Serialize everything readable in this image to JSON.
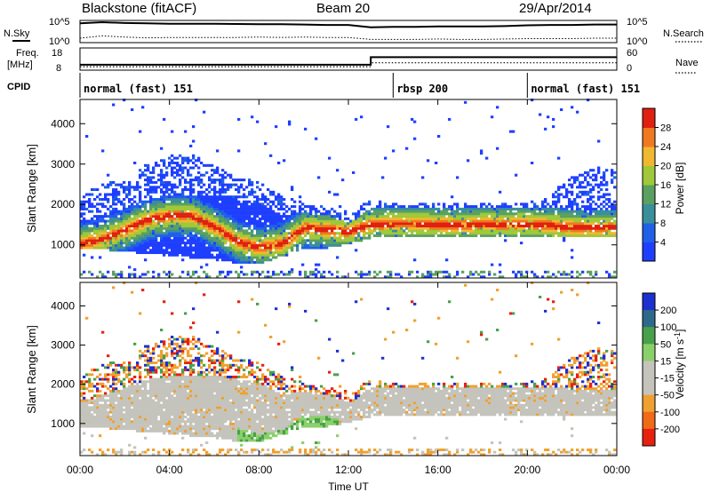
{
  "header": {
    "station": "Blackstone (fitACF)",
    "beam": "Beam 20",
    "date": "29/Apr/2014"
  },
  "chart_data": [
    {
      "type": "line",
      "panel": "noise",
      "left_label": "N.Sky",
      "right_label": "N.Search",
      "ticks_left": [
        "10^5",
        "10^0"
      ],
      "ticks_right": [
        "10^5",
        "10^0"
      ],
      "x_range_hours": [
        0,
        24
      ],
      "series": [
        {
          "name": "N.Sky",
          "style": "solid",
          "values_log10": [
            4.7,
            5.0,
            4.8,
            4.7,
            4.6,
            4.6,
            4.6,
            4.55,
            4.5,
            4.5,
            4.4,
            4.3,
            4.3,
            3.7,
            3.8,
            3.8,
            3.9,
            3.9,
            3.9,
            4.0,
            4.2,
            4.3,
            4.3,
            4.4,
            4.4
          ]
        },
        {
          "name": "N.Search",
          "style": "dotted",
          "values_log10": [
            0.9,
            1.5,
            1.2,
            1.0,
            1.1,
            1.1,
            1.1,
            1.1,
            1.2,
            1.1,
            1.2,
            1.1,
            1.1,
            0.6,
            0.6,
            0.6,
            0.7,
            0.6,
            0.6,
            0.7,
            0.8,
            0.8,
            0.8,
            0.9,
            0.9
          ]
        }
      ]
    },
    {
      "type": "line",
      "panel": "frequency",
      "left_label_1": "Freq.",
      "left_label_2": "[MHz]",
      "right_label": "Nave",
      "ticks_left": [
        "18",
        "8"
      ],
      "ticks_right": [
        "60",
        "0"
      ],
      "series": [
        {
          "name": "Freq.",
          "style": "solid",
          "x_hours": [
            0,
            13,
            13,
            24
          ],
          "y": [
            10.3,
            10.3,
            14.2,
            14.2
          ]
        },
        {
          "name": "Nave",
          "style": "dotted",
          "x_hours": [
            0,
            13,
            13,
            24
          ],
          "y": [
            8,
            8,
            20,
            20
          ]
        }
      ]
    },
    {
      "type": "table",
      "panel": "cpid",
      "label": "CPID",
      "segments": [
        {
          "start_hour": 0,
          "end_hour": 14,
          "label": "normal (fast) 151"
        },
        {
          "start_hour": 14,
          "end_hour": 20,
          "label": "rbsp 200"
        },
        {
          "start_hour": 20,
          "end_hour": 24,
          "label": "normal (fast) 151"
        }
      ]
    },
    {
      "type": "heatmap",
      "panel": "power",
      "ylabel": "Slant Range [km]",
      "ylim": [
        180,
        4600
      ],
      "yticks": [
        "1000",
        "2000",
        "3000",
        "4000"
      ],
      "colorbar_label": "Power [dB]",
      "colorbar_ticks": [
        "4",
        "8",
        "12",
        "16",
        "20",
        "24",
        "28"
      ],
      "colorbar_colors": [
        "#1f3fff",
        "#2060e8",
        "#3a8f9a",
        "#5aa060",
        "#9fc83a",
        "#f0b830",
        "#f07820",
        "#e02010"
      ],
      "band_center_km": [
        1000,
        1120,
        1350,
        1600,
        1700,
        1680,
        1400,
        1050,
        900,
        1000,
        1400,
        1350,
        1300,
        1480,
        1500,
        1500,
        1480,
        1450,
        1500,
        1480,
        1500,
        1450,
        1400,
        1380,
        1400
      ],
      "band_upper_km": [
        1500,
        1700,
        1900,
        2100,
        2200,
        2200,
        2200,
        2100,
        2000,
        1700,
        1800,
        1700,
        1500,
        1900,
        1900,
        1900,
        1900,
        1900,
        1900,
        1900,
        1900,
        1900,
        1850,
        1850,
        1850
      ],
      "band_lower_km": [
        850,
        850,
        800,
        750,
        700,
        650,
        600,
        520,
        500,
        700,
        900,
        900,
        1000,
        1150,
        1150,
        1150,
        1150,
        1150,
        1150,
        1150,
        1150,
        1150,
        1150,
        1150,
        1150
      ],
      "scatter_upper_km": [
        2300,
        2500,
        2600,
        3000,
        3200,
        3200,
        2900,
        2700,
        2500,
        2200,
        2000,
        1900,
        1800,
        2100,
        2000,
        2000,
        2000,
        2000,
        2000,
        2000,
        2000,
        2200,
        2700,
        2900,
        2800
      ]
    },
    {
      "type": "heatmap",
      "panel": "velocity",
      "ylabel": "Slant Range [km]",
      "xlabel": "Time UT",
      "ylim": [
        180,
        4600
      ],
      "yticks": [
        "1000",
        "2000",
        "3000",
        "4000"
      ],
      "xticks": [
        "00:00",
        "04:00",
        "08:00",
        "12:00",
        "16:00",
        "20:00",
        "00:00"
      ],
      "colorbar_label": "Velocity [m s",
      "colorbar_label_sup": "-1",
      "colorbar_label_end": "]",
      "colorbar_ticks": [
        "200",
        "100",
        "50",
        "15",
        "-15",
        "-50",
        "-100",
        "-200"
      ],
      "colorbar_colors": [
        "#1c30d0",
        "#2d6a8a",
        "#49a04a",
        "#8ad06a",
        "#c4c4bc",
        "#c4c4bc",
        "#f0a030",
        "#f06a18",
        "#e82010"
      ]
    }
  ]
}
